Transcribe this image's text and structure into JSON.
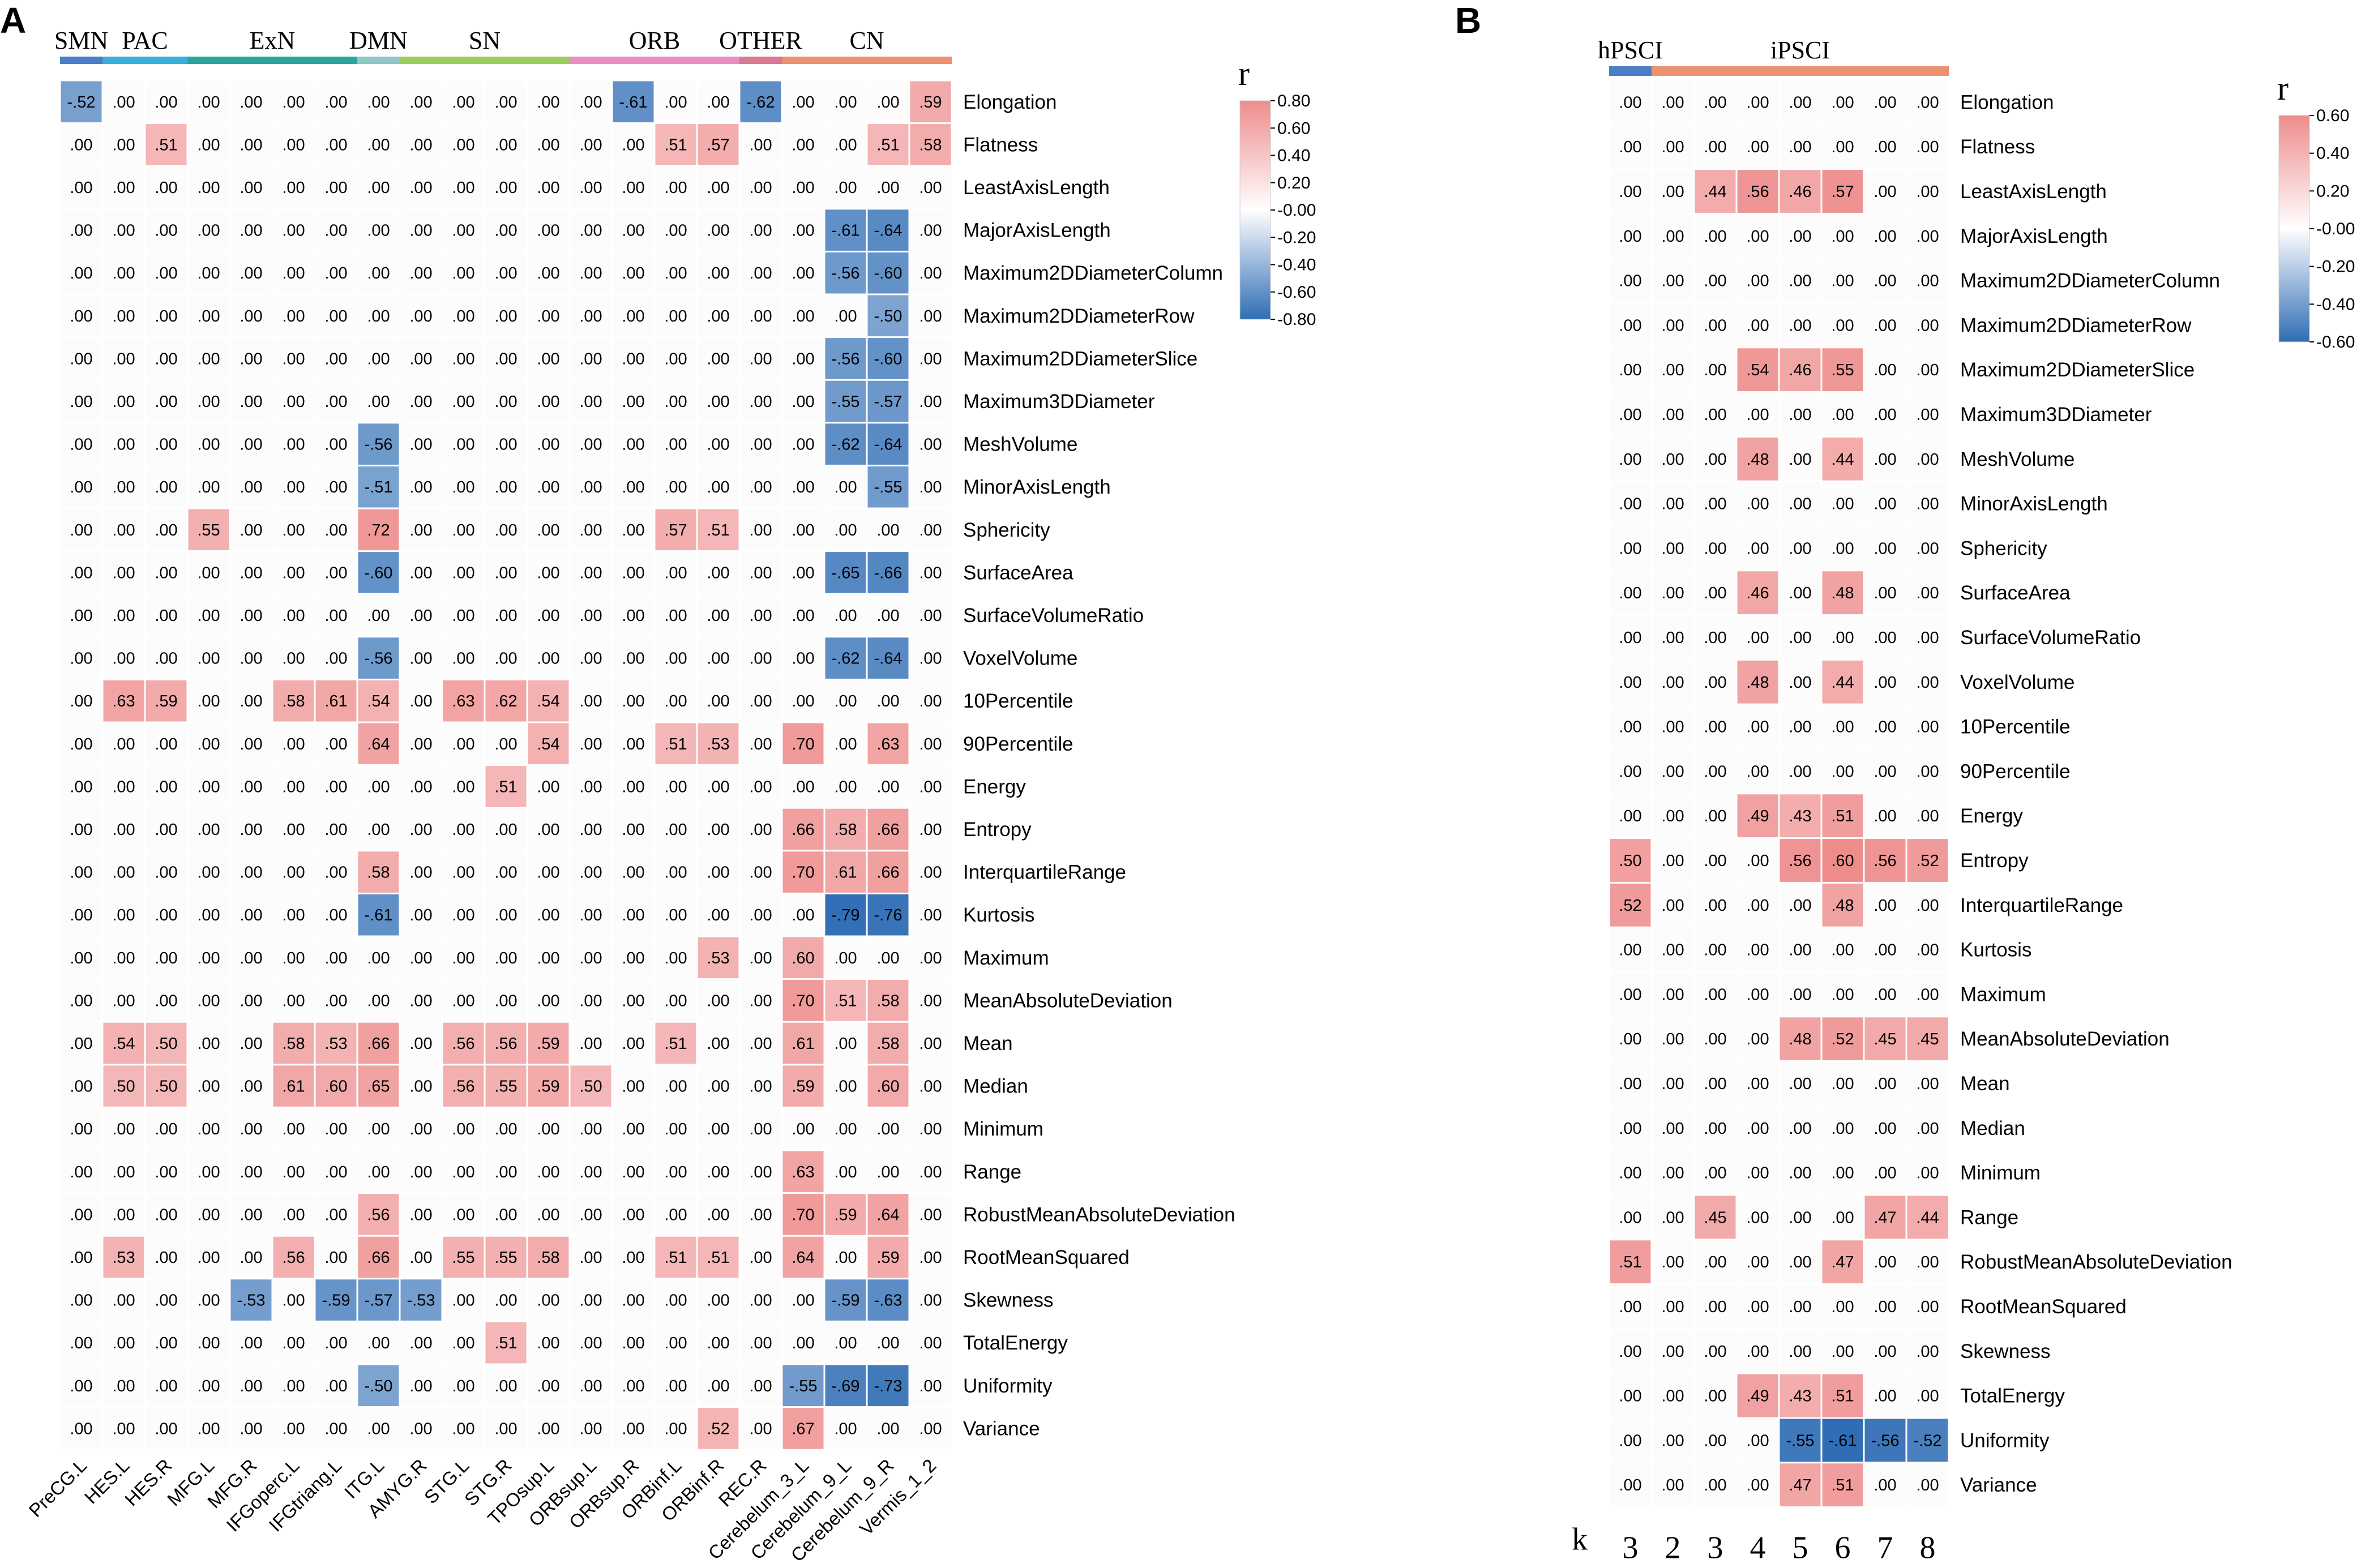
{
  "chart_data": [
    {
      "type": "heatmap",
      "panel": "A",
      "colorbar": {
        "title": "r",
        "min": -0.8,
        "max": 0.8,
        "ticks": [
          "0.80",
          "0.60",
          "0.40",
          "0.20",
          "-0.00",
          "-0.20",
          "-0.40",
          "-0.60",
          "-0.80"
        ],
        "pos_color": "#ee8c8c",
        "neg_color": "#2f6db5"
      },
      "groups": [
        {
          "label": "SMN",
          "start": 0,
          "span": 1,
          "color": "#4a7fc8"
        },
        {
          "label": "PAC",
          "start": 1,
          "span": 2,
          "color": "#3aaedc"
        },
        {
          "label": "ExN",
          "start": 3,
          "span": 4,
          "color": "#2ca5a0"
        },
        {
          "label": "DMN",
          "start": 7,
          "span": 1,
          "color": "#8fc8c4"
        },
        {
          "label": "SN",
          "start": 8,
          "span": 4,
          "color": "#9ccc5a"
        },
        {
          "label": "ORB",
          "start": 12,
          "span": 4,
          "color": "#e98ec0"
        },
        {
          "label": "OTHER",
          "start": 16,
          "span": 1,
          "color": "#d87a92"
        },
        {
          "label": "CN",
          "start": 17,
          "span": 4,
          "color": "#ed9270"
        }
      ],
      "columns": [
        "PreCG.L",
        "HES.L",
        "HES.R",
        "MFG.L",
        "MFG.R",
        "IFGoperc.L",
        "IFGtriang.L",
        "ITG.L",
        "AMYG.R",
        "STG.L",
        "STG.R",
        "TPOsup.L",
        "ORBsup.L",
        "ORBsup.R",
        "ORBinf.L",
        "ORBinf.R",
        "REC.R",
        "Cerebelum_3_L",
        "Cerebelum_9_L",
        "Cerebelum_9_R",
        "Vermis_1_2"
      ],
      "rows": [
        "Elongation",
        "Flatness",
        "LeastAxisLength",
        "MajorAxisLength",
        "Maximum2DDiameterColumn",
        "Maximum2DDiameterRow",
        "Maximum2DDiameterSlice",
        "Maximum3DDiameter",
        "MeshVolume",
        "MinorAxisLength",
        "Sphericity",
        "SurfaceArea",
        "SurfaceVolumeRatio",
        "VoxelVolume",
        "10Percentile",
        "90Percentile",
        "Energy",
        "Entropy",
        "InterquartileRange",
        "Kurtosis",
        "Maximum",
        "MeanAbsoluteDeviation",
        "Mean",
        "Median",
        "Minimum",
        "Range",
        "RobustMeanAbsoluteDeviation",
        "RootMeanSquared",
        "Skewness",
        "TotalEnergy",
        "Uniformity",
        "Variance"
      ],
      "values": [
        [
          -0.52,
          0,
          0,
          0,
          0,
          0,
          0,
          0,
          0,
          0,
          0,
          0,
          0,
          -0.61,
          0,
          0,
          -0.62,
          0,
          0,
          0,
          0.59
        ],
        [
          0,
          0,
          0.51,
          0,
          0,
          0,
          0,
          0,
          0,
          0,
          0,
          0,
          0,
          0,
          0.51,
          0.57,
          0,
          0,
          0,
          0.51,
          0.58
        ],
        [
          0,
          0,
          0,
          0,
          0,
          0,
          0,
          0,
          0,
          0,
          0,
          0,
          0,
          0,
          0,
          0,
          0,
          0,
          0,
          0,
          0
        ],
        [
          0,
          0,
          0,
          0,
          0,
          0,
          0,
          0,
          0,
          0,
          0,
          0,
          0,
          0,
          0,
          0,
          0,
          0,
          -0.61,
          -0.64,
          0
        ],
        [
          0,
          0,
          0,
          0,
          0,
          0,
          0,
          0,
          0,
          0,
          0,
          0,
          0,
          0,
          0,
          0,
          0,
          0,
          -0.56,
          -0.6,
          0
        ],
        [
          0,
          0,
          0,
          0,
          0,
          0,
          0,
          0,
          0,
          0,
          0,
          0,
          0,
          0,
          0,
          0,
          0,
          0,
          0,
          -0.5,
          0
        ],
        [
          0,
          0,
          0,
          0,
          0,
          0,
          0,
          0,
          0,
          0,
          0,
          0,
          0,
          0,
          0,
          0,
          0,
          0,
          -0.56,
          -0.6,
          0
        ],
        [
          0,
          0,
          0,
          0,
          0,
          0,
          0,
          0,
          0,
          0,
          0,
          0,
          0,
          0,
          0,
          0,
          0,
          0,
          -0.55,
          -0.57,
          0
        ],
        [
          0,
          0,
          0,
          0,
          0,
          0,
          0,
          -0.56,
          0,
          0,
          0,
          0,
          0,
          0,
          0,
          0,
          0,
          0,
          -0.62,
          -0.64,
          0
        ],
        [
          0,
          0,
          0,
          0,
          0,
          0,
          0,
          -0.51,
          0,
          0,
          0,
          0,
          0,
          0,
          0,
          0,
          0,
          0,
          0,
          -0.55,
          0
        ],
        [
          0,
          0,
          0,
          0.55,
          0,
          0,
          0,
          0.72,
          0,
          0,
          0,
          0,
          0,
          0,
          0.57,
          0.51,
          0,
          0,
          0,
          0,
          0
        ],
        [
          0,
          0,
          0,
          0,
          0,
          0,
          0,
          -0.6,
          0,
          0,
          0,
          0,
          0,
          0,
          0,
          0,
          0,
          0,
          -0.65,
          -0.66,
          0
        ],
        [
          0,
          0,
          0,
          0,
          0,
          0,
          0,
          0,
          0,
          0,
          0,
          0,
          0,
          0,
          0,
          0,
          0,
          0,
          0,
          0,
          0
        ],
        [
          0,
          0,
          0,
          0,
          0,
          0,
          0,
          -0.56,
          0,
          0,
          0,
          0,
          0,
          0,
          0,
          0,
          0,
          0,
          -0.62,
          -0.64,
          0
        ],
        [
          0,
          0.63,
          0.59,
          0,
          0,
          0.58,
          0.61,
          0.54,
          0,
          0.63,
          0.62,
          0.54,
          0,
          0,
          0,
          0,
          0,
          0,
          0,
          0,
          0
        ],
        [
          0,
          0,
          0,
          0,
          0,
          0,
          0,
          0.64,
          0,
          0,
          0,
          0.54,
          0,
          0,
          0.51,
          0.53,
          0,
          0.7,
          0,
          0.63,
          0
        ],
        [
          0,
          0,
          0,
          0,
          0,
          0,
          0,
          0,
          0,
          0,
          0.51,
          0,
          0,
          0,
          0,
          0,
          0,
          0,
          0,
          0,
          0
        ],
        [
          0,
          0,
          0,
          0,
          0,
          0,
          0,
          0,
          0,
          0,
          0,
          0,
          0,
          0,
          0,
          0,
          0,
          0.66,
          0.58,
          0.66,
          0
        ],
        [
          0,
          0,
          0,
          0,
          0,
          0,
          0,
          0.58,
          0,
          0,
          0,
          0,
          0,
          0,
          0,
          0,
          0,
          0.7,
          0.61,
          0.66,
          0
        ],
        [
          0,
          0,
          0,
          0,
          0,
          0,
          0,
          -0.61,
          0,
          0,
          0,
          0,
          0,
          0,
          0,
          0,
          0,
          0,
          -0.79,
          -0.76,
          0
        ],
        [
          0,
          0,
          0,
          0,
          0,
          0,
          0,
          0,
          0,
          0,
          0,
          0,
          0,
          0,
          0,
          0.53,
          0,
          0.6,
          0,
          0,
          0
        ],
        [
          0,
          0,
          0,
          0,
          0,
          0,
          0,
          0,
          0,
          0,
          0,
          0,
          0,
          0,
          0,
          0,
          0,
          0.7,
          0.51,
          0.58,
          0
        ],
        [
          0,
          0.54,
          0.5,
          0,
          0,
          0.58,
          0.53,
          0.66,
          0,
          0.56,
          0.56,
          0.59,
          0,
          0,
          0.51,
          0,
          0,
          0.61,
          0,
          0.58,
          0
        ],
        [
          0,
          0.5,
          0.5,
          0,
          0,
          0.61,
          0.6,
          0.65,
          0,
          0.56,
          0.55,
          0.59,
          0.5,
          0,
          0,
          0,
          0,
          0.59,
          0,
          0.6,
          0
        ],
        [
          0,
          0,
          0,
          0,
          0,
          0,
          0,
          0,
          0,
          0,
          0,
          0,
          0,
          0,
          0,
          0,
          0,
          0,
          0,
          0,
          0
        ],
        [
          0,
          0,
          0,
          0,
          0,
          0,
          0,
          0,
          0,
          0,
          0,
          0,
          0,
          0,
          0,
          0,
          0,
          0.63,
          0,
          0,
          0
        ],
        [
          0,
          0,
          0,
          0,
          0,
          0,
          0,
          0.56,
          0,
          0,
          0,
          0,
          0,
          0,
          0,
          0,
          0,
          0.7,
          0.59,
          0.64,
          0
        ],
        [
          0,
          0.53,
          0,
          0,
          0,
          0.56,
          0,
          0.66,
          0,
          0.55,
          0.55,
          0.58,
          0,
          0,
          0.51,
          0.51,
          0,
          0.64,
          0,
          0.59,
          0
        ],
        [
          0,
          0,
          0,
          0,
          -0.53,
          0,
          -0.59,
          -0.57,
          -0.53,
          0,
          0,
          0,
          0,
          0,
          0,
          0,
          0,
          0,
          -0.59,
          -0.63,
          0
        ],
        [
          0,
          0,
          0,
          0,
          0,
          0,
          0,
          0,
          0,
          0,
          0.51,
          0,
          0,
          0,
          0,
          0,
          0,
          0,
          0,
          0,
          0
        ],
        [
          0,
          0,
          0,
          0,
          0,
          0,
          0,
          -0.5,
          0,
          0,
          0,
          0,
          0,
          0,
          0,
          0,
          0,
          -0.55,
          -0.69,
          -0.73,
          0
        ],
        [
          0,
          0,
          0,
          0,
          0,
          0,
          0,
          0,
          0,
          0,
          0,
          0,
          0,
          0,
          0,
          0.52,
          0,
          0.67,
          0,
          0,
          0
        ]
      ]
    },
    {
      "type": "heatmap",
      "panel": "B",
      "colorbar": {
        "title": "r",
        "min": -0.6,
        "max": 0.6,
        "ticks": [
          "0.60",
          "0.40",
          "0.20",
          "-0.00",
          "-0.20",
          "-0.40",
          "-0.60"
        ],
        "pos_color": "#ee8c8c",
        "neg_color": "#2f6db5"
      },
      "groups": [
        {
          "label": "hPSCI",
          "start": 0,
          "span": 1,
          "color": "#4a7fc8"
        },
        {
          "label": "iPSCI",
          "start": 1,
          "span": 7,
          "color": "#ed9270"
        }
      ],
      "k_label": "k",
      "columns": [
        "3",
        "2",
        "3",
        "4",
        "5",
        "6",
        "7",
        "8"
      ],
      "rows": [
        "Elongation",
        "Flatness",
        "LeastAxisLength",
        "MajorAxisLength",
        "Maximum2DDiameterColumn",
        "Maximum2DDiameterRow",
        "Maximum2DDiameterSlice",
        "Maximum3DDiameter",
        "MeshVolume",
        "MinorAxisLength",
        "Sphericity",
        "SurfaceArea",
        "SurfaceVolumeRatio",
        "VoxelVolume",
        "10Percentile",
        "90Percentile",
        "Energy",
        "Entropy",
        "InterquartileRange",
        "Kurtosis",
        "Maximum",
        "MeanAbsoluteDeviation",
        "Mean",
        "Median",
        "Minimum",
        "Range",
        "RobustMeanAbsoluteDeviation",
        "RootMeanSquared",
        "Skewness",
        "TotalEnergy",
        "Uniformity",
        "Variance"
      ],
      "values": [
        [
          0,
          0,
          0,
          0,
          0,
          0,
          0,
          0
        ],
        [
          0,
          0,
          0,
          0,
          0,
          0,
          0,
          0
        ],
        [
          0,
          0,
          0.44,
          0.56,
          0.46,
          0.57,
          0,
          0
        ],
        [
          0,
          0,
          0,
          0,
          0,
          0,
          0,
          0
        ],
        [
          0,
          0,
          0,
          0,
          0,
          0,
          0,
          0
        ],
        [
          0,
          0,
          0,
          0,
          0,
          0,
          0,
          0
        ],
        [
          0,
          0,
          0,
          0.54,
          0.46,
          0.55,
          0,
          0
        ],
        [
          0,
          0,
          0,
          0,
          0,
          0,
          0,
          0
        ],
        [
          0,
          0,
          0,
          0.48,
          0,
          0.44,
          0,
          0
        ],
        [
          0,
          0,
          0,
          0,
          0,
          0,
          0,
          0
        ],
        [
          0,
          0,
          0,
          0,
          0,
          0,
          0,
          0
        ],
        [
          0,
          0,
          0,
          0.46,
          0,
          0.48,
          0,
          0
        ],
        [
          0,
          0,
          0,
          0,
          0,
          0,
          0,
          0
        ],
        [
          0,
          0,
          0,
          0.48,
          0,
          0.44,
          0,
          0
        ],
        [
          0,
          0,
          0,
          0,
          0,
          0,
          0,
          0
        ],
        [
          0,
          0,
          0,
          0,
          0,
          0,
          0,
          0
        ],
        [
          0,
          0,
          0,
          0.49,
          0.43,
          0.51,
          0,
          0
        ],
        [
          0.5,
          0,
          0,
          0,
          0.56,
          0.6,
          0.56,
          0.52
        ],
        [
          0.52,
          0,
          0,
          0,
          0,
          0.48,
          0,
          0
        ],
        [
          0,
          0,
          0,
          0,
          0,
          0,
          0,
          0
        ],
        [
          0,
          0,
          0,
          0,
          0,
          0,
          0,
          0
        ],
        [
          0,
          0,
          0,
          0,
          0.48,
          0.52,
          0.45,
          0.45
        ],
        [
          0,
          0,
          0,
          0,
          0,
          0,
          0,
          0
        ],
        [
          0,
          0,
          0,
          0,
          0,
          0,
          0,
          0
        ],
        [
          0,
          0,
          0,
          0,
          0,
          0,
          0,
          0
        ],
        [
          0,
          0,
          0.45,
          0,
          0,
          0,
          0.47,
          0.44
        ],
        [
          0.51,
          0,
          0,
          0,
          0,
          0.47,
          0,
          0
        ],
        [
          0,
          0,
          0,
          0,
          0,
          0,
          0,
          0
        ],
        [
          0,
          0,
          0,
          0,
          0,
          0,
          0,
          0
        ],
        [
          0,
          0,
          0,
          0.49,
          0.43,
          0.51,
          0,
          0
        ],
        [
          0,
          0,
          0,
          0,
          -0.55,
          -0.61,
          -0.56,
          -0.52
        ],
        [
          0,
          0,
          0,
          0,
          0.47,
          0.51,
          0,
          0
        ]
      ]
    }
  ]
}
